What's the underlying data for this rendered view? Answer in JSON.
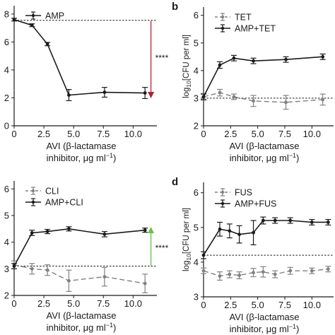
{
  "panels": {
    "a": {
      "label": ""
    },
    "b": {
      "label": "b"
    },
    "c": {
      "label": ""
    },
    "d": {
      "label": "d"
    }
  },
  "significance": "****",
  "colors": {
    "amp": "#1a1a1a",
    "single": "#808080",
    "arrow_down": "#b0242c",
    "arrow_up": "#6abf45"
  },
  "chart_data": [
    {
      "id": "a",
      "type": "line",
      "xlabel_line1": "AVI (β-lactamase",
      "xlabel_line2_prefix": "inhibitor, μg ml",
      "xlabel_line2_sup": "−1",
      "xlabel_line2_suffix": ")",
      "ylabel_prefix": "",
      "ylabel_sub": "",
      "ylabel_suffix": "",
      "xlim": [
        0,
        12
      ],
      "ylim": [
        0,
        8.6
      ],
      "xticks": [
        0,
        2.5,
        5.0,
        7.5,
        10.0
      ],
      "xtick_labels": [
        "0",
        "2.5",
        "5.0",
        "7.5",
        "10.0"
      ],
      "yticks": [
        0,
        2,
        4,
        6,
        8
      ],
      "ytick_labels": [
        "0",
        "2",
        "4",
        "6",
        "8"
      ],
      "legend_location": "upper-left",
      "baseline": 7.55,
      "arrow": {
        "direction": "down",
        "x": 11.5,
        "from": 7.5,
        "to": 2.2
      },
      "series": [
        {
          "name": "AMP",
          "style": "solid",
          "color": "#1a1a1a",
          "x": [
            0,
            1.5,
            2.8,
            4.6,
            7.6,
            11.0
          ],
          "y": [
            7.6,
            7.2,
            5.85,
            2.2,
            2.4,
            2.35
          ],
          "err": [
            0.1,
            0.1,
            0.12,
            0.4,
            0.35,
            0.4
          ]
        }
      ]
    },
    {
      "id": "b",
      "type": "line",
      "xlabel_line1": "AVI (β-lactamase",
      "xlabel_line2_prefix": "inhibitor, μg ml",
      "xlabel_line2_sup": "−1",
      "xlabel_line2_suffix": ")",
      "ylabel_prefix": "log",
      "ylabel_sub": "10",
      "ylabel_suffix": "[CFU per ml]",
      "xlim": [
        0,
        12
      ],
      "ylim": [
        2,
        6.3
      ],
      "xticks": [
        0,
        2.5,
        5.0,
        7.5,
        10.0
      ],
      "xtick_labels": [
        "0",
        "2.5",
        "5.0",
        "7.5",
        "10.0"
      ],
      "yticks": [
        2,
        3,
        4,
        5,
        6
      ],
      "ytick_labels": [
        "2",
        "3",
        "4",
        "5",
        "6"
      ],
      "legend_location": "upper-left",
      "baseline": 3.0,
      "series": [
        {
          "name": "TET",
          "style": "dashed",
          "color": "#808080",
          "x": [
            0,
            1.5,
            2.8,
            4.6,
            7.6,
            11.0
          ],
          "y": [
            3.05,
            3.2,
            3.05,
            2.9,
            2.85,
            2.95
          ],
          "err": [
            0.12,
            0.12,
            0.1,
            0.2,
            0.25,
            0.2
          ]
        },
        {
          "name": "AMP+TET",
          "style": "solid",
          "color": "#1a1a1a",
          "x": [
            0,
            1.5,
            2.8,
            4.6,
            7.6,
            11.0
          ],
          "y": [
            3.05,
            4.2,
            4.45,
            4.35,
            4.4,
            4.5
          ],
          "err": [
            0.1,
            0.12,
            0.1,
            0.1,
            0.1,
            0.1
          ]
        }
      ]
    },
    {
      "id": "c",
      "type": "line",
      "xlabel_line1": "AVI (β-lactamase",
      "xlabel_line2_prefix": "inhibitor, μg ml",
      "xlabel_line2_sup": "−1",
      "xlabel_line2_suffix": ")",
      "ylabel_prefix": "",
      "ylabel_sub": "",
      "ylabel_suffix": "",
      "xlim": [
        0,
        12
      ],
      "ylim": [
        2,
        6.3
      ],
      "xticks": [
        0,
        2.5,
        5.0,
        7.5,
        10.0
      ],
      "xtick_labels": [
        "0",
        "2.5",
        "5.0",
        "7.5",
        "10.0"
      ],
      "yticks": [
        2,
        3,
        4,
        5,
        6
      ],
      "ytick_labels": [
        "2",
        "3",
        "4",
        "5",
        "6"
      ],
      "legend_location": "upper-left",
      "baseline": 3.1,
      "arrow": {
        "direction": "up",
        "x": 11.5,
        "from": 3.1,
        "to": 4.45
      },
      "series": [
        {
          "name": "CLI",
          "style": "dashed",
          "color": "#808080",
          "x": [
            0,
            1.5,
            2.8,
            4.6,
            7.6,
            11.0
          ],
          "y": [
            3.15,
            3.0,
            2.95,
            2.55,
            2.7,
            2.45
          ],
          "err": [
            0.15,
            0.2,
            0.2,
            0.4,
            0.35,
            0.35
          ]
        },
        {
          "name": "AMP+CLI",
          "style": "solid",
          "color": "#1a1a1a",
          "x": [
            0,
            1.5,
            2.8,
            4.6,
            7.6,
            11.0
          ],
          "y": [
            3.1,
            4.35,
            4.4,
            4.5,
            4.3,
            4.45
          ],
          "err": [
            0.1,
            0.1,
            0.08,
            0.08,
            0.1,
            0.08
          ]
        }
      ]
    },
    {
      "id": "d",
      "type": "line",
      "xlabel_line1": "AVI (β-lactamase",
      "xlabel_line2_prefix": "inhibitor, μg ml",
      "xlabel_line2_sup": "−1",
      "xlabel_line2_suffix": ")",
      "ylabel_prefix": "log",
      "ylabel_sub": "10",
      "ylabel_suffix": "[CFU per ml]",
      "xlim": [
        0,
        12
      ],
      "ylim": [
        3,
        6.3
      ],
      "xticks": [
        0,
        2.5,
        5.0,
        7.5,
        10.0
      ],
      "xtick_labels": [
        "0",
        "2.5",
        "5.0",
        "7.5",
        "10.0"
      ],
      "yticks": [
        3,
        4,
        5,
        6
      ],
      "ytick_labels": [
        "3",
        "4",
        "5",
        "6"
      ],
      "legend_location": "upper-left",
      "baseline": 4.2,
      "series": [
        {
          "name": "FUS",
          "style": "dashed",
          "color": "#808080",
          "x": [
            0,
            1.5,
            2.4,
            3.3,
            4.6,
            5.5,
            6.6,
            8.0,
            10.0,
            11.5
          ],
          "y": [
            3.75,
            3.6,
            3.65,
            3.62,
            3.7,
            3.72,
            3.65,
            3.75,
            3.75,
            3.8
          ],
          "err": [
            0.08,
            0.12,
            0.1,
            0.1,
            0.12,
            0.15,
            0.1,
            0.1,
            0.08,
            0.08
          ]
        },
        {
          "name": "AMP+FUS",
          "style": "solid",
          "color": "#1a1a1a",
          "x": [
            0,
            1.5,
            2.4,
            3.3,
            4.6,
            5.5,
            6.6,
            8.0,
            10.0,
            11.5
          ],
          "y": [
            4.2,
            4.95,
            4.9,
            4.8,
            4.85,
            5.2,
            5.2,
            5.2,
            5.15,
            5.15
          ],
          "err": [
            0.1,
            0.2,
            0.2,
            0.25,
            0.35,
            0.1,
            0.08,
            0.08,
            0.08,
            0.08
          ]
        }
      ]
    }
  ]
}
